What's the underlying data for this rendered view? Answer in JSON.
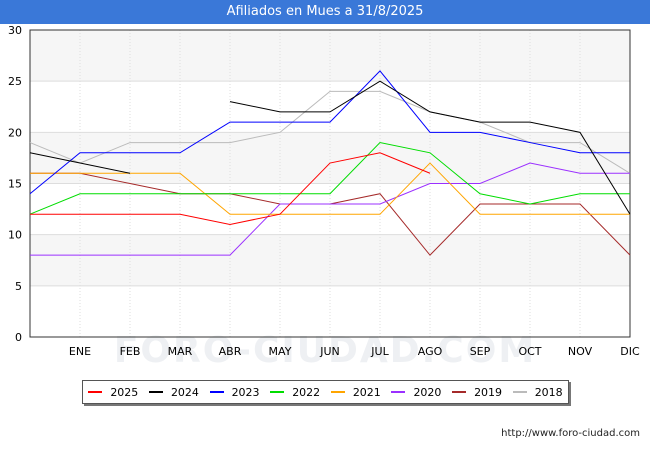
{
  "header": {
    "title": "Afiliados en Mues a 31/8/2025"
  },
  "watermark": "FORO-CIUDAD.COM",
  "credit": "http://www.foro-ciudad.com",
  "chart_data": {
    "type": "line",
    "title": "Afiliados en Mues a 31/8/2025",
    "categories": [
      "",
      "ENE",
      "FEB",
      "MAR",
      "ABR",
      "MAY",
      "JUN",
      "JUL",
      "AGO",
      "SEP",
      "OCT",
      "NOV",
      "DIC"
    ],
    "ylim": [
      0,
      30
    ],
    "yticks": [
      0,
      5,
      10,
      15,
      20,
      25,
      30
    ],
    "grid": true,
    "legend_position": "bottom",
    "series": [
      {
        "name": "2025",
        "color": "#ff0000",
        "values": [
          12,
          12,
          12,
          12,
          11,
          12,
          17,
          18,
          16,
          null,
          null,
          null,
          null
        ]
      },
      {
        "name": "2024",
        "color": "#000000",
        "values": [
          18,
          17,
          16,
          null,
          23,
          22,
          22,
          25,
          22,
          21,
          21,
          20,
          12
        ]
      },
      {
        "name": "2023",
        "color": "#0000ff",
        "values": [
          14,
          18,
          18,
          18,
          21,
          21,
          21,
          26,
          20,
          20,
          19,
          18,
          18
        ]
      },
      {
        "name": "2022",
        "color": "#00dd00",
        "values": [
          12,
          14,
          14,
          14,
          14,
          14,
          14,
          19,
          18,
          14,
          13,
          14,
          14
        ]
      },
      {
        "name": "2021",
        "color": "#ffa500",
        "values": [
          16,
          16,
          16,
          16,
          12,
          12,
          12,
          12,
          17,
          12,
          12,
          12,
          12
        ]
      },
      {
        "name": "2020",
        "color": "#9b30ff",
        "values": [
          8,
          8,
          8,
          8,
          8,
          13,
          13,
          13,
          15,
          15,
          17,
          16,
          16
        ]
      },
      {
        "name": "2019",
        "color": "#a52a2a",
        "values": [
          16,
          16,
          15,
          14,
          14,
          13,
          13,
          14,
          8,
          13,
          13,
          13,
          8
        ]
      },
      {
        "name": "2018",
        "color": "#bbbbbb",
        "values": [
          19,
          17,
          19,
          19,
          19,
          20,
          24,
          24,
          22,
          21,
          19,
          19,
          16
        ]
      }
    ]
  }
}
